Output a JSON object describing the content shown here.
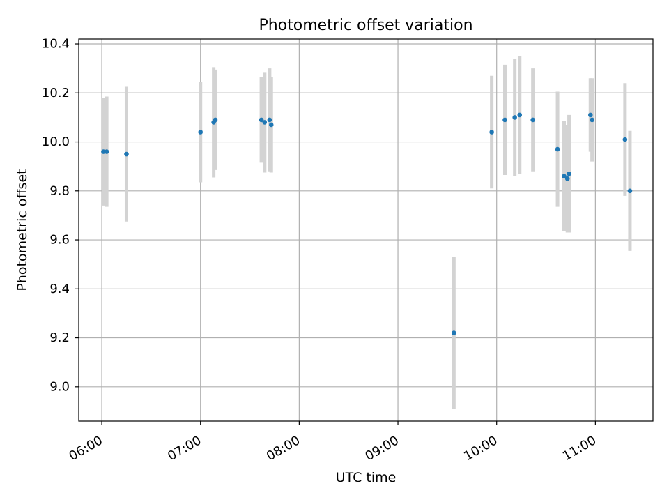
{
  "chart_data": {
    "type": "scatter",
    "title": "Photometric offset variation",
    "xlabel": "UTC time",
    "ylabel": "Photometric offset",
    "x_unit": "UTC time of day",
    "xlim": [
      "05:46",
      "11:35"
    ],
    "ylim": [
      8.86,
      10.42
    ],
    "x_ticks": [
      "06:00",
      "07:00",
      "08:00",
      "09:00",
      "10:00",
      "11:00"
    ],
    "y_ticks": [
      "9.0",
      "9.2",
      "9.4",
      "9.6",
      "9.8",
      "10.0",
      "10.2",
      "10.4"
    ],
    "grid": true,
    "legend": "none",
    "colors": {
      "points": "#1f77b4",
      "error_bars": "#d3d3d3",
      "grid": "#b0b0b0"
    },
    "series": [
      {
        "points": [
          {
            "x": "06:01",
            "y": 9.96,
            "err": 0.22
          },
          {
            "x": "06:03",
            "y": 9.96,
            "err": 0.225
          },
          {
            "x": "06:15",
            "y": 9.95,
            "err": 0.275
          },
          {
            "x": "07:00",
            "y": 10.04,
            "err": 0.205
          },
          {
            "x": "07:08",
            "y": 10.08,
            "err": 0.225
          },
          {
            "x": "07:09",
            "y": 10.09,
            "err": 0.205
          },
          {
            "x": "07:37",
            "y": 10.09,
            "err": 0.175
          },
          {
            "x": "07:39",
            "y": 10.08,
            "err": 0.205
          },
          {
            "x": "07:42",
            "y": 10.09,
            "err": 0.21
          },
          {
            "x": "07:43",
            "y": 10.07,
            "err": 0.195
          },
          {
            "x": "09:34",
            "y": 9.22,
            "err": 0.31
          },
          {
            "x": "09:57",
            "y": 10.04,
            "err": 0.23
          },
          {
            "x": "10:05",
            "y": 10.09,
            "err": 0.225
          },
          {
            "x": "10:11",
            "y": 10.1,
            "err": 0.24
          },
          {
            "x": "10:14",
            "y": 10.11,
            "err": 0.24
          },
          {
            "x": "10:22",
            "y": 10.09,
            "err": 0.21
          },
          {
            "x": "10:37",
            "y": 9.97,
            "err": 0.235
          },
          {
            "x": "10:41",
            "y": 9.86,
            "err": 0.225
          },
          {
            "x": "10:43",
            "y": 9.85,
            "err": 0.22
          },
          {
            "x": "10:44",
            "y": 9.87,
            "err": 0.24
          },
          {
            "x": "10:57",
            "y": 10.11,
            "err": 0.15
          },
          {
            "x": "10:58",
            "y": 10.09,
            "err": 0.17
          },
          {
            "x": "11:18",
            "y": 10.01,
            "err": 0.23
          },
          {
            "x": "11:21",
            "y": 9.8,
            "err": 0.245
          }
        ]
      }
    ]
  }
}
